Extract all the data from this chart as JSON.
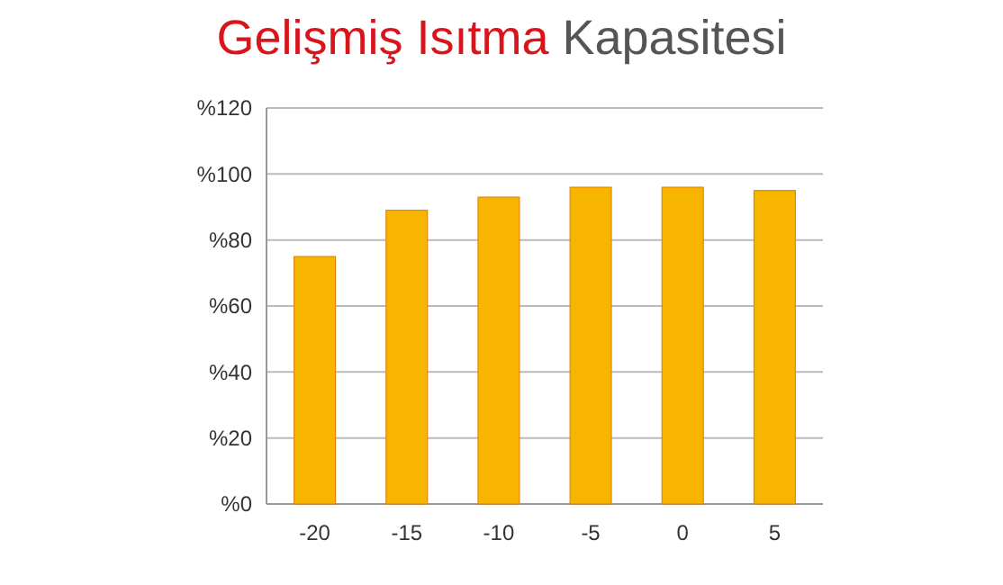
{
  "chart_data": {
    "type": "bar",
    "title": "Gelişmiş Isıtma Kapasitesi",
    "categories": [
      "-20",
      "-15",
      "-10",
      "-5",
      "0",
      "5"
    ],
    "values": [
      75,
      89,
      93,
      96,
      96,
      95
    ],
    "color": "#f7b500",
    "ylim": [
      0,
      120
    ],
    "yticks": [
      {
        "value": 0,
        "label": "%0"
      },
      {
        "value": 20,
        "label": "%20"
      },
      {
        "value": 40,
        "label": "%40"
      },
      {
        "value": 60,
        "label": "%60"
      },
      {
        "value": 80,
        "label": "%80"
      },
      {
        "value": 100,
        "label": "%100"
      },
      {
        "value": 120,
        "label": "%120"
      }
    ],
    "grid": "y"
  }
}
